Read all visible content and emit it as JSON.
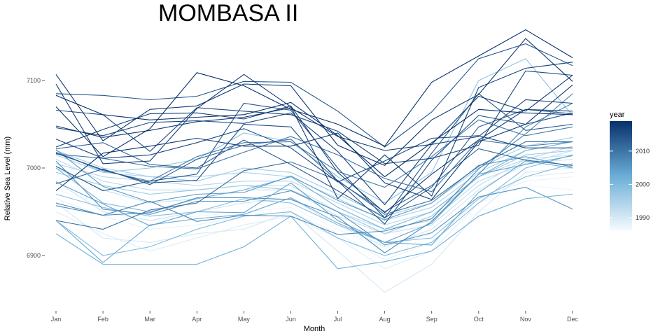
{
  "chart_data": {
    "type": "line",
    "title": "MOMBASA II",
    "xlabel": "Month",
    "ylabel": "Relative Sea Level (mm)",
    "categories": [
      "Jan",
      "Feb",
      "Mar",
      "Apr",
      "May",
      "Jun",
      "Jul",
      "Aug",
      "Sep",
      "Oct",
      "Nov",
      "Dec"
    ],
    "ylim": [
      6840,
      7160
    ],
    "yticks": [
      6900,
      7000,
      7100
    ],
    "grid": false,
    "legend": {
      "title": "year",
      "placement": "right",
      "type": "colorbar",
      "range": [
        1986,
        2019
      ],
      "ticks": [
        1990,
        2000,
        2010
      ],
      "colors": [
        "#f7fbff",
        "#6baed6",
        "#08306b"
      ]
    },
    "series": [
      {
        "year": 1986,
        "values": [
          6990,
          6970,
          6955,
          6960,
          6960,
          6955,
          6930,
          6905,
          6920,
          6950,
          6965,
          6960
        ]
      },
      {
        "year": 1987,
        "values": [
          6975,
          6960,
          6940,
          6945,
          6950,
          6955,
          6930,
          6908,
          6925,
          6960,
          6980,
          6975
        ]
      },
      {
        "year": 1988,
        "values": [
          6965,
          6945,
          6930,
          6935,
          6945,
          6950,
          6925,
          6895,
          6915,
          6965,
          6985,
          6990
        ]
      },
      {
        "year": 1989,
        "values": [
          6950,
          6925,
          6905,
          6920,
          6935,
          6945,
          6920,
          6885,
          6905,
          6960,
          6990,
          6995
        ]
      },
      {
        "year": 1990,
        "values": [
          6960,
          6920,
          6915,
          6925,
          6930,
          6950,
          6905,
          6858,
          6890,
          6950,
          6995,
          7000
        ]
      },
      {
        "year": 1991,
        "values": [
          6985,
          6950,
          6940,
          6950,
          6960,
          6965,
          6935,
          6910,
          6930,
          6975,
          7005,
          7010
        ]
      },
      {
        "year": 1992,
        "values": [
          7000,
          6975,
          6960,
          6965,
          6975,
          6975,
          6945,
          6925,
          6935,
          6980,
          7010,
          7015
        ]
      },
      {
        "year": 1993,
        "values": [
          7010,
          6985,
          6975,
          6975,
          6980,
          6980,
          6950,
          6930,
          6940,
          6985,
          7005,
          7020
        ]
      },
      {
        "year": 1994,
        "values": [
          7005,
          6990,
          6985,
          6980,
          6985,
          6985,
          6960,
          6935,
          6950,
          6990,
          7010,
          7025
        ]
      },
      {
        "year": 1995,
        "values": [
          7015,
          6995,
          6990,
          6990,
          6995,
          6990,
          6965,
          6940,
          6955,
          6995,
          7020,
          7030
        ]
      },
      {
        "year": 1996,
        "values": [
          7020,
          7000,
          6990,
          6985,
          7000,
          6995,
          6970,
          6945,
          6960,
          7000,
          7025,
          7035
        ]
      },
      {
        "year": 1997,
        "values": [
          6995,
          6980,
          6970,
          6975,
          6980,
          6975,
          6950,
          6925,
          6945,
          6990,
          7015,
          7020
        ]
      },
      {
        "year": 1998,
        "values": [
          7020,
          6995,
          7000,
          7010,
          7040,
          7030,
          6990,
          6960,
          6995,
          7100,
          7125,
          7060
        ]
      },
      {
        "year": 1999,
        "values": [
          6970,
          6955,
          6945,
          6950,
          6965,
          6960,
          6935,
          6915,
          6920,
          6965,
          6990,
          7005
        ]
      },
      {
        "year": 2000,
        "values": [
          6940,
          6900,
          6910,
          6930,
          6945,
          6950,
          6920,
          6900,
          6915,
          6960,
          7000,
          7015
        ]
      },
      {
        "year": 2001,
        "values": [
          7000,
          6960,
          6950,
          6965,
          6975,
          6990,
          6955,
          6930,
          6950,
          6990,
          7020,
          7030
        ]
      },
      {
        "year": 2002,
        "values": [
          6925,
          6890,
          6890,
          6890,
          6910,
          6945,
          6885,
          6893,
          6905,
          6945,
          6965,
          6970
        ]
      },
      {
        "year": 2003,
        "values": [
          6940,
          6892,
          6935,
          6942,
          6947,
          6966,
          6937,
          6915,
          6912,
          6972,
          7008,
          7000
        ]
      },
      {
        "year": 2004,
        "values": [
          6984,
          6959,
          6934,
          6950,
          6949,
          6983,
          6940,
          6915,
          6937,
          6993,
          7004,
          7014
        ]
      },
      {
        "year": 2005,
        "values": [
          7021,
          6979,
          6961,
          6970,
          6972,
          6991,
          6963,
          6941,
          6960,
          7003,
          7013,
          7001
        ]
      },
      {
        "year": 2006,
        "values": [
          7008,
          6953,
          6947,
          6962,
          6962,
          6974,
          6950,
          6912,
          6926,
          6967,
          6978,
          6953
        ]
      },
      {
        "year": 2007,
        "values": [
          6957,
          6946,
          6949,
          6966,
          6966,
          6964,
          6944,
          6903,
          6939,
          6993,
          7047,
          7074
        ]
      },
      {
        "year": 2008,
        "values": [
          6960,
          6946,
          6962,
          6939,
          6946,
          6945,
          6924,
          6928,
          6942,
          6999,
          7039,
          7085
        ]
      },
      {
        "year": 2009,
        "values": [
          7018,
          6997,
          6985,
          7013,
          7029,
          7030,
          6996,
          6978,
          7013,
          7055,
          7037,
          7047
        ]
      },
      {
        "year": 2010,
        "values": [
          7016,
          7011,
          7002,
          6999,
          7018,
          7036,
          7015,
          6988,
          6973,
          7032,
          7025,
          7030
        ]
      },
      {
        "year": 2011,
        "values": [
          6940,
          6930,
          6952,
          6960,
          6997,
          7007,
          6986,
          6947,
          6963,
          7002,
          7030,
          7030
        ]
      },
      {
        "year": 2012,
        "values": [
          6982,
          6999,
          6981,
          7010,
          7026,
          7033,
          6985,
          6950,
          6980,
          7022,
          7009,
          7003
        ]
      },
      {
        "year": 2013,
        "values": [
          7022,
          7029,
          7004,
          7000,
          7032,
          7004,
          6974,
          6943,
          6978,
          7047,
          7067,
          7062
        ]
      },
      {
        "year": 2014,
        "values": [
          7002,
          6974,
          6985,
          6993,
          7074,
          7066,
          7000,
          6943,
          7017,
          7085,
          7043,
          7050
        ]
      },
      {
        "year": 2015,
        "values": [
          7017,
          6998,
          6983,
          6986,
          7050,
          7047,
          6985,
          6936,
          7009,
          7060,
          7050,
          7063
        ]
      },
      {
        "year": 2016,
        "values": [
          7046,
          7037,
          7052,
          7054,
          7051,
          7063,
          7019,
          6958,
          7027,
          7036,
          7078,
          7074
        ]
      },
      {
        "year": 2017,
        "values": [
          7024,
          7044,
          7062,
          7063,
          7056,
          7071,
          6995,
          6949,
          6993,
          7032,
          7067,
          7065
        ]
      },
      {
        "year": 2018,
        "values": [
          7107,
          7031,
          7067,
          7071,
          7096,
          7094,
          7026,
          7003,
          7055,
          7084,
          7148,
          7099
        ]
      },
      {
        "year": 2019,
        "values": [
          7083,
          7061,
          7055,
          7058,
          7061,
          7075,
          7037,
          6990,
          7029,
          7067,
          7063,
          7061
        ]
      }
    ],
    "extra_series": [
      {
        "year": 2018,
        "values": [
          7048,
          7035,
          7043,
          7053,
          7058,
          7069,
          7036,
          7020,
          7027,
          7082,
          7065,
          7106
        ]
      },
      {
        "year": 2017,
        "values": [
          7096,
          7005,
          7008,
          7068,
          7107,
          7070,
          6965,
          7015,
          6968,
          7092,
          7114,
          7121
        ]
      },
      {
        "year": 2016,
        "values": [
          7066,
          7061,
          7019,
          7069,
          7065,
          7061,
          7042,
          7005,
          7011,
          7026,
          7111,
          7106
        ]
      },
      {
        "year": 2019,
        "values": [
          7070,
          7013,
          7045,
          7109,
          7094,
          7067,
          7050,
          7025,
          7098,
          7128,
          7158,
          7126
        ]
      },
      {
        "year": 2018,
        "values": [
          6974,
          7017,
          7025,
          7034,
          7025,
          7025,
          7040,
          6983,
          6964,
          7030,
          7050,
          7095
        ]
      },
      {
        "year": 2016,
        "values": [
          7033,
          7011,
          7015,
          7029,
          7045,
          7023,
          6984,
          7008,
          7034,
          7037,
          7023,
          7023
        ]
      },
      {
        "year": 2014,
        "values": [
          7085,
          7083,
          7078,
          7082,
          7099,
          7098,
          7065,
          7024,
          7064,
          7125,
          7142,
          7117
        ]
      }
    ]
  }
}
